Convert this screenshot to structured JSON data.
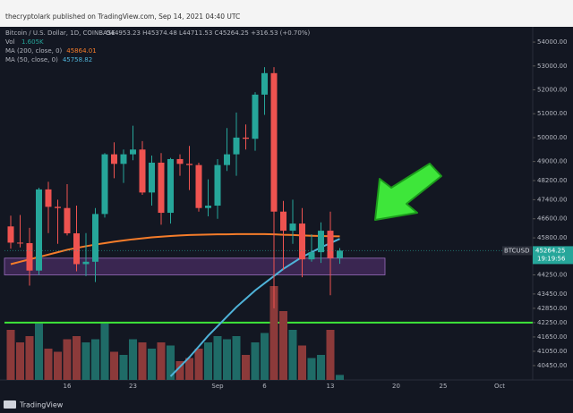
{
  "header": {
    "publisher": "thecryptolark published on TradingView.com, Sep 14, 2021 04:40 UTC"
  },
  "chart_data": {
    "type": "candlestick",
    "title": "Bitcoin / U.S. Dollar, 1D, COINBASE",
    "quote": "O44953.23 H45374.48 L44711.53 C45264.25 +316.53 (+0.70%)",
    "categories": [
      null,
      null,
      null,
      null,
      null,
      null,
      "16",
      null,
      null,
      null,
      null,
      null,
      null,
      "23",
      null,
      null,
      null,
      null,
      null,
      null,
      null,
      null,
      "Sep",
      null,
      null,
      null,
      null,
      "6",
      null,
      null,
      null,
      null,
      null,
      null,
      "13",
      null,
      null,
      null,
      null,
      null,
      null,
      "20",
      null,
      null,
      null,
      null,
      "25",
      null,
      null,
      null,
      null,
      null,
      "Oct",
      null,
      null,
      null
    ],
    "open": [
      46280,
      45600,
      45580,
      44430,
      47830,
      47100,
      47050,
      45990,
      44700,
      44800,
      46800,
      49300,
      48900,
      49300,
      49500,
      47700,
      48950,
      46850,
      49100,
      48900,
      48850,
      47050,
      47150,
      48850,
      49300,
      50000,
      49950,
      51800,
      52700,
      46900,
      46100,
      46400,
      44900,
      45200,
      46100,
      44953.23,
      null,
      null,
      null,
      null,
      null,
      null,
      null,
      null,
      null,
      null,
      null,
      null,
      null,
      null,
      null,
      null,
      null,
      null,
      null,
      null
    ],
    "high": [
      46730,
      46760,
      46220,
      47900,
      48150,
      47400,
      48050,
      47150,
      46000,
      47050,
      49350,
      49800,
      49500,
      50500,
      49850,
      49250,
      49350,
      49150,
      49300,
      49650,
      48950,
      48250,
      49100,
      50400,
      51050,
      50550,
      51900,
      52950,
      52950,
      47350,
      47400,
      47050,
      45950,
      46450,
      46900,
      45374.48,
      null,
      null,
      null,
      null,
      null,
      null,
      null,
      null,
      null,
      null,
      null,
      null,
      null,
      null,
      null,
      null,
      null,
      null,
      null,
      null
    ],
    "low": [
      45350,
      45400,
      43800,
      44250,
      46000,
      45550,
      45900,
      44400,
      44200,
      43950,
      46650,
      48300,
      48100,
      49050,
      47600,
      47150,
      46350,
      46400,
      48400,
      47800,
      46900,
      46700,
      46600,
      48600,
      48400,
      49500,
      49450,
      50950,
      42850,
      44450,
      45550,
      44150,
      44800,
      44750,
      43400,
      44711.53,
      null,
      null,
      null,
      null,
      null,
      null,
      null,
      null,
      null,
      null,
      null,
      null,
      null,
      null,
      null,
      null,
      null,
      null,
      null,
      null
    ],
    "close": [
      45600,
      45580,
      44430,
      47830,
      47100,
      47050,
      45990,
      44700,
      44800,
      46800,
      49300,
      48900,
      49300,
      49500,
      47700,
      48950,
      46850,
      49100,
      48900,
      48850,
      47050,
      47150,
      48850,
      49300,
      50000,
      49950,
      51800,
      52700,
      46900,
      46100,
      46400,
      44900,
      45200,
      46100,
      44950,
      45264.25,
      null,
      null,
      null,
      null,
      null,
      null,
      null,
      null,
      null,
      null,
      null,
      null,
      null,
      null,
      null,
      null,
      null,
      null,
      null,
      null
    ],
    "up_color": "#26a69a",
    "down_color": "#ef5350",
    "volume": {
      "name": "Vol",
      "value_label": "1.605K",
      "up_color": "#1f6b67",
      "down_color": "#8c3a3a",
      "values": [
        16,
        12,
        14,
        18,
        10,
        9,
        13,
        14,
        12,
        13,
        18,
        9,
        8,
        13,
        12,
        10,
        12,
        11,
        6,
        7,
        10,
        12,
        14,
        13,
        14,
        8,
        12,
        15,
        30,
        22,
        16,
        11,
        7,
        8,
        16,
        1.605,
        null,
        null,
        null,
        null,
        null,
        null,
        null,
        null,
        null,
        null,
        null,
        null,
        null,
        null,
        null,
        null,
        null,
        null,
        null,
        null
      ]
    },
    "series": [
      {
        "name": "MA (200, close, 0)",
        "color": "#f57c2a",
        "value_label": "45864.01",
        "values": [
          44700,
          44800,
          44900,
          45000,
          45100,
          45200,
          45300,
          45380,
          45450,
          45520,
          45580,
          45640,
          45690,
          45740,
          45780,
          45820,
          45850,
          45880,
          45900,
          45920,
          45930,
          45940,
          45950,
          45950,
          45960,
          45960,
          45960,
          45960,
          45950,
          45930,
          45920,
          45900,
          45890,
          45880,
          45870,
          45864.01,
          null,
          null,
          null,
          null,
          null,
          null,
          null,
          null,
          null,
          null,
          null,
          null,
          null,
          null,
          null,
          null,
          null,
          null,
          null,
          null
        ]
      },
      {
        "name": "MA (50, close, 0)",
        "color": "#4fb3d9",
        "value_label": "45758.82",
        "values": [
          null,
          null,
          null,
          null,
          null,
          null,
          null,
          null,
          null,
          null,
          null,
          null,
          null,
          null,
          null,
          null,
          null,
          40000,
          40400,
          40800,
          41250,
          41700,
          42100,
          42500,
          42900,
          43250,
          43600,
          43900,
          44200,
          44500,
          44750,
          45000,
          45200,
          45400,
          45580,
          45758.82,
          null,
          null,
          null,
          null,
          null,
          null,
          null,
          null,
          null,
          null,
          null,
          null,
          null,
          null,
          null,
          null,
          null,
          null,
          null,
          null
        ]
      }
    ],
    "ylim": [
      39850,
      54640
    ],
    "yticks": [
      {
        "value": 54000,
        "label": "54000.00"
      },
      {
        "value": 53000,
        "label": "53000.00"
      },
      {
        "value": 52000,
        "label": "52000.00"
      },
      {
        "value": 51000,
        "label": "51000.00"
      },
      {
        "value": 50000,
        "label": "50000.00"
      },
      {
        "value": 49000,
        "label": "49000.00"
      },
      {
        "value": 48200,
        "label": "48200.00"
      },
      {
        "value": 47400,
        "label": "47400.00"
      },
      {
        "value": 46600,
        "label": "46600.00"
      },
      {
        "value": 45800,
        "label": "45800.00"
      },
      {
        "value": 44250,
        "label": "44250.00"
      },
      {
        "value": 43450,
        "label": "43450.00"
      },
      {
        "value": 42850,
        "label": "42850.00"
      },
      {
        "value": 42250,
        "label": "42250.00"
      },
      {
        "value": 41650,
        "label": "41650.00"
      },
      {
        "value": 41050,
        "label": "41050.00"
      },
      {
        "value": 40450,
        "label": "40450.00"
      }
    ],
    "last_price": {
      "symbol": "BTCUSD",
      "value": 45264.25,
      "countdown": "19:19:56"
    },
    "support_line": {
      "value": 42250,
      "color": "#3ee63a"
    },
    "zone": {
      "range": [
        44250,
        44950
      ],
      "color": "#6b3a8c"
    }
  },
  "footer": {
    "brand": "TradingView"
  }
}
